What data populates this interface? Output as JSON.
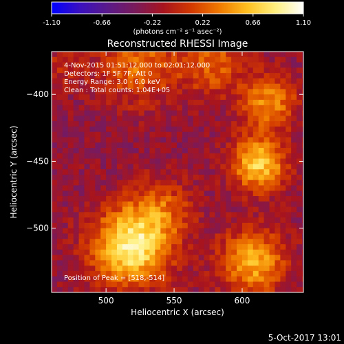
{
  "colorbar": {
    "tick_labels": [
      "-1.10",
      "-0.66",
      "-0.22",
      "0.22",
      "0.66",
      "1.10"
    ],
    "tick_values": [
      -1.1,
      -0.66,
      -0.22,
      0.22,
      0.66,
      1.1
    ],
    "range": [
      -1.1,
      1.1
    ],
    "unit_label": "(photons cm⁻² s⁻¹ asec⁻²)",
    "colors": [
      "#0000ff",
      "#3a10c0",
      "#5a1a8a",
      "#7a1a5a",
      "#a8141e",
      "#d23a00",
      "#f07a00",
      "#ffc020",
      "#fff080",
      "#ffffff"
    ]
  },
  "chart_data": {
    "type": "heatmap",
    "title": "Reconstructed RHESSI Image",
    "xlabel": "Heliocentric X (arcsec)",
    "ylabel": "Heliocentric Y (arcsec)",
    "xlim": [
      460,
      645
    ],
    "ylim": [
      -548,
      -368
    ],
    "xticks": [
      500,
      550,
      600
    ],
    "yticks": [
      -400,
      -450,
      -500
    ],
    "grid": false,
    "pixel_size_arcsec": 4,
    "sources": [
      {
        "x": 518,
        "y": -514,
        "amp": 1.15,
        "sigma": 20
      },
      {
        "x": 540,
        "y": -485,
        "amp": 0.45,
        "sigma": 16
      },
      {
        "x": 525,
        "y": -378,
        "amp": 0.55,
        "sigma": 20
      },
      {
        "x": 578,
        "y": -377,
        "amp": 0.5,
        "sigma": 16
      },
      {
        "x": 612,
        "y": -452,
        "amp": 0.95,
        "sigma": 14
      },
      {
        "x": 620,
        "y": -405,
        "amp": 0.7,
        "sigma": 14
      },
      {
        "x": 608,
        "y": -525,
        "amp": 0.8,
        "sigma": 17
      },
      {
        "x": 470,
        "y": -378,
        "amp": 0.25,
        "sigma": 12
      }
    ],
    "background": -0.25,
    "annotations": {
      "time_range": "4-Nov-2015 01:51:12.000 to 02:01:12.000",
      "detectors": "Detectors: 1F 5F 7F, Att 0",
      "energy_range": "Energy Range: 3.0 - 6.0 keV",
      "method": "Clean : Total counts: 1.04E+05",
      "peak": "Position of Peak = [518,-514]"
    }
  },
  "footer": {
    "timestamp": "5-Oct-2017 13:01"
  }
}
